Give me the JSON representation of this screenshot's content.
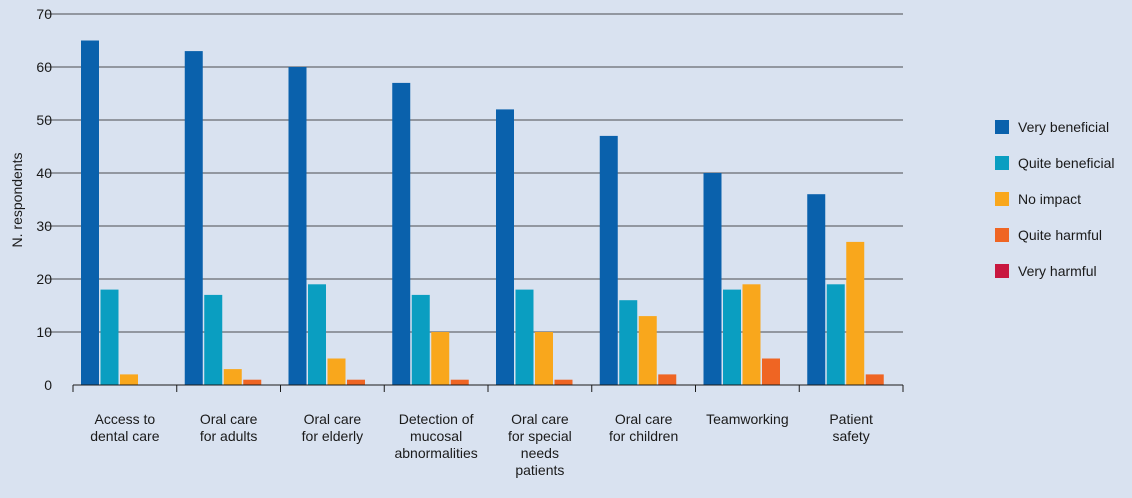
{
  "chart_data": {
    "type": "bar",
    "title": "",
    "xlabel": "",
    "ylabel": "N. respondents",
    "ylim": [
      0,
      70
    ],
    "yticks": [
      0,
      10,
      20,
      30,
      40,
      50,
      60,
      70
    ],
    "grid": "horizontal",
    "legend_position": "right",
    "categories": [
      [
        "Access to",
        "dental care"
      ],
      [
        "Oral care",
        "for adults"
      ],
      [
        "Oral care",
        "for elderly"
      ],
      [
        "Detection of",
        "mucosal",
        "abnormalities"
      ],
      [
        "Oral care",
        "for special",
        "needs",
        "patients"
      ],
      [
        "Oral care",
        "for children"
      ],
      [
        "Teamworking"
      ],
      [
        "Patient",
        "safety"
      ]
    ],
    "series": [
      {
        "name": "Very beneficial",
        "color": "#0a61ac",
        "values": [
          65,
          63,
          60,
          57,
          52,
          47,
          40,
          36
        ]
      },
      {
        "name": "Quite beneficial",
        "color": "#0a9ec1",
        "values": [
          18,
          17,
          19,
          17,
          18,
          16,
          18,
          19
        ]
      },
      {
        "name": "No impact",
        "color": "#f9a71c",
        "values": [
          2,
          3,
          5,
          10,
          10,
          13,
          19,
          27
        ]
      },
      {
        "name": "Quite harmful",
        "color": "#ef6523",
        "values": [
          0,
          1,
          1,
          1,
          1,
          2,
          5,
          2
        ]
      },
      {
        "name": "Very harmful",
        "color": "#c8173f",
        "values": [
          0,
          0,
          0,
          0,
          0,
          0,
          0,
          0
        ]
      }
    ]
  }
}
